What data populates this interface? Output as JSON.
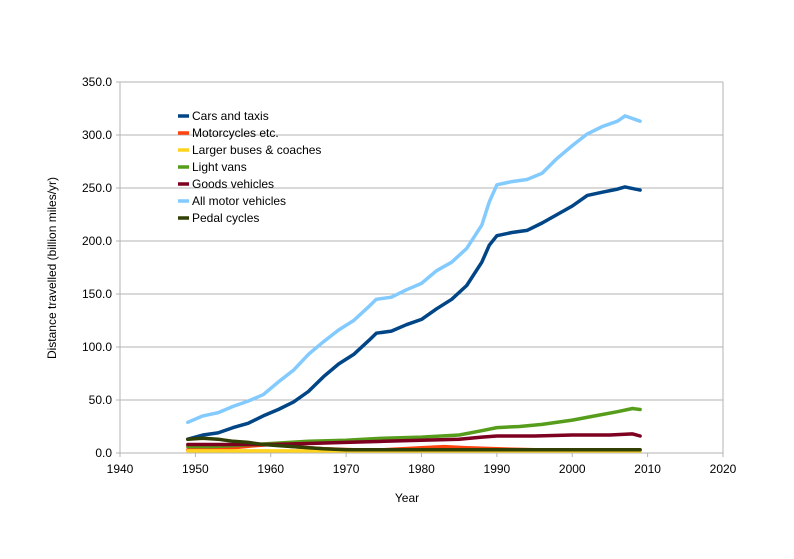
{
  "chart_data": {
    "type": "line",
    "title": "",
    "xlabel": "Year",
    "ylabel": "Distance travelled (billion miles/yr)",
    "xlim": [
      1940,
      2020
    ],
    "ylim": [
      0,
      350
    ],
    "x_ticks": [
      1940,
      1950,
      1960,
      1970,
      1980,
      1990,
      2000,
      2010,
      2020
    ],
    "y_ticks": [
      0,
      50,
      100,
      150,
      200,
      250,
      300,
      350
    ],
    "y_tick_labels": [
      "0.0",
      "50.0",
      "100.0",
      "150.0",
      "200.0",
      "250.0",
      "300.0",
      "350.0"
    ],
    "grid": "horizontal",
    "legend_position": "top-left inside",
    "series": [
      {
        "name": "Cars and taxis",
        "color": "#004586",
        "points": [
          [
            1949,
            13
          ],
          [
            1951,
            17
          ],
          [
            1953,
            19
          ],
          [
            1955,
            24
          ],
          [
            1957,
            28
          ],
          [
            1959,
            35
          ],
          [
            1961,
            41
          ],
          [
            1963,
            48
          ],
          [
            1965,
            58
          ],
          [
            1967,
            72
          ],
          [
            1969,
            84
          ],
          [
            1971,
            93
          ],
          [
            1973,
            106
          ],
          [
            1974,
            113
          ],
          [
            1976,
            115
          ],
          [
            1978,
            121
          ],
          [
            1980,
            126
          ],
          [
            1982,
            136
          ],
          [
            1984,
            145
          ],
          [
            1986,
            158
          ],
          [
            1988,
            180
          ],
          [
            1989,
            196
          ],
          [
            1990,
            205
          ],
          [
            1992,
            208
          ],
          [
            1994,
            210
          ],
          [
            1996,
            217
          ],
          [
            1998,
            225
          ],
          [
            2000,
            233
          ],
          [
            2002,
            243
          ],
          [
            2004,
            246
          ],
          [
            2006,
            249
          ],
          [
            2007,
            251
          ],
          [
            2009,
            248
          ]
        ]
      },
      {
        "name": "Motorcycles etc.",
        "color": "#ff420e",
        "points": [
          [
            1949,
            3
          ],
          [
            1952,
            4
          ],
          [
            1955,
            5
          ],
          [
            1958,
            7
          ],
          [
            1960,
            8
          ],
          [
            1963,
            6
          ],
          [
            1967,
            4
          ],
          [
            1971,
            3
          ],
          [
            1975,
            3
          ],
          [
            1980,
            5
          ],
          [
            1983,
            6
          ],
          [
            1986,
            5
          ],
          [
            1990,
            4
          ],
          [
            1995,
            3
          ],
          [
            2000,
            3
          ],
          [
            2005,
            3
          ],
          [
            2009,
            3
          ]
        ]
      },
      {
        "name": "Larger buses & coaches",
        "color": "#ffd320",
        "points": [
          [
            1949,
            2
          ],
          [
            1955,
            2
          ],
          [
            1960,
            2
          ],
          [
            1965,
            2
          ],
          [
            1970,
            2
          ],
          [
            1975,
            2
          ],
          [
            1980,
            2
          ],
          [
            1985,
            2
          ],
          [
            1990,
            2
          ],
          [
            1995,
            2
          ],
          [
            2000,
            2
          ],
          [
            2005,
            2
          ],
          [
            2009,
            2
          ]
        ]
      },
      {
        "name": "Light vans",
        "color": "#579d1c",
        "points": [
          [
            1949,
            6
          ],
          [
            1952,
            6
          ],
          [
            1955,
            7
          ],
          [
            1958,
            8
          ],
          [
            1960,
            9
          ],
          [
            1965,
            11
          ],
          [
            1970,
            12
          ],
          [
            1975,
            14
          ],
          [
            1980,
            15
          ],
          [
            1985,
            17
          ],
          [
            1988,
            21
          ],
          [
            1990,
            24
          ],
          [
            1993,
            25
          ],
          [
            1996,
            27
          ],
          [
            2000,
            31
          ],
          [
            2003,
            35
          ],
          [
            2006,
            39
          ],
          [
            2008,
            42
          ],
          [
            2009,
            41
          ]
        ]
      },
      {
        "name": "Goods vehicles",
        "color": "#7e0021",
        "points": [
          [
            1949,
            8
          ],
          [
            1955,
            8
          ],
          [
            1960,
            8
          ],
          [
            1965,
            9
          ],
          [
            1970,
            10
          ],
          [
            1975,
            11
          ],
          [
            1980,
            12
          ],
          [
            1985,
            13
          ],
          [
            1988,
            15
          ],
          [
            1990,
            16
          ],
          [
            1995,
            16
          ],
          [
            2000,
            17
          ],
          [
            2005,
            17
          ],
          [
            2008,
            18
          ],
          [
            2009,
            16
          ]
        ]
      },
      {
        "name": "All motor vehicles",
        "color": "#83caff",
        "points": [
          [
            1949,
            29
          ],
          [
            1951,
            35
          ],
          [
            1953,
            38
          ],
          [
            1955,
            44
          ],
          [
            1957,
            49
          ],
          [
            1959,
            55
          ],
          [
            1961,
            67
          ],
          [
            1963,
            78
          ],
          [
            1965,
            93
          ],
          [
            1967,
            105
          ],
          [
            1969,
            116
          ],
          [
            1971,
            125
          ],
          [
            1973,
            138
          ],
          [
            1974,
            145
          ],
          [
            1976,
            147
          ],
          [
            1978,
            154
          ],
          [
            1980,
            160
          ],
          [
            1982,
            172
          ],
          [
            1984,
            180
          ],
          [
            1986,
            193
          ],
          [
            1988,
            215
          ],
          [
            1989,
            237
          ],
          [
            1990,
            253
          ],
          [
            1992,
            256
          ],
          [
            1994,
            258
          ],
          [
            1996,
            264
          ],
          [
            1998,
            278
          ],
          [
            2000,
            290
          ],
          [
            2002,
            301
          ],
          [
            2004,
            308
          ],
          [
            2006,
            313
          ],
          [
            2007,
            318
          ],
          [
            2009,
            313
          ]
        ]
      },
      {
        "name": "Pedal cycles",
        "color": "#314004",
        "points": [
          [
            1949,
            13
          ],
          [
            1951,
            14
          ],
          [
            1953,
            13
          ],
          [
            1955,
            11
          ],
          [
            1957,
            10
          ],
          [
            1959,
            8
          ],
          [
            1961,
            7
          ],
          [
            1963,
            6
          ],
          [
            1965,
            5
          ],
          [
            1967,
            4
          ],
          [
            1970,
            3
          ],
          [
            1975,
            3
          ],
          [
            1980,
            3
          ],
          [
            1985,
            3
          ],
          [
            1990,
            3
          ],
          [
            1995,
            3
          ],
          [
            2000,
            3
          ],
          [
            2005,
            3
          ],
          [
            2009,
            3
          ]
        ]
      }
    ]
  }
}
